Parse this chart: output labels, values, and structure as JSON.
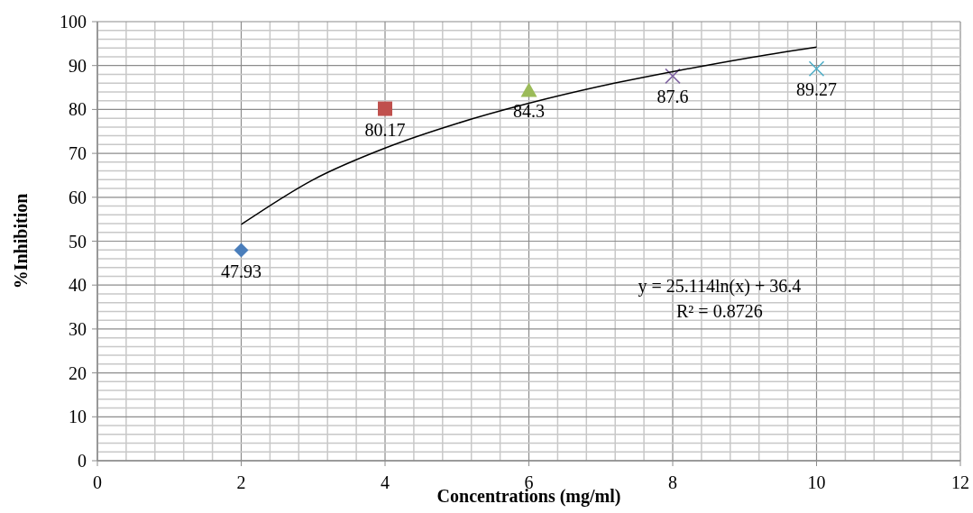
{
  "chart_data": {
    "type": "scatter",
    "xlabel": "Concentrations (mg/ml)",
    "ylabel": "%Inhibition",
    "xlim": [
      0,
      12
    ],
    "ylim": [
      0,
      100
    ],
    "xticks": [
      0,
      {
        "value": 0.4,
        "label": null
      },
      {
        "value": 0.8,
        "label": null
      },
      {
        "value": 1.2,
        "label": null
      },
      {
        "value": 1.6,
        "label": null
      },
      2,
      {
        "value": 2.4,
        "label": null
      },
      {
        "value": 2.8,
        "label": null
      },
      {
        "value": 3.2,
        "label": null
      },
      {
        "value": 3.6,
        "label": null
      },
      4,
      {
        "value": 4.4,
        "label": null
      },
      {
        "value": 4.8,
        "label": null
      },
      {
        "value": 5.2,
        "label": null
      },
      {
        "value": 5.6,
        "label": null
      },
      6,
      {
        "value": 6.4,
        "label": null
      },
      {
        "value": 6.8,
        "label": null
      },
      {
        "value": 7.2,
        "label": null
      },
      {
        "value": 7.6,
        "label": null
      },
      8,
      {
        "value": 8.4,
        "label": null
      },
      {
        "value": 8.8,
        "label": null
      },
      {
        "value": 9.2,
        "label": null
      },
      {
        "value": 9.6,
        "label": null
      },
      10,
      {
        "value": 10.4,
        "label": null
      },
      {
        "value": 10.8,
        "label": null
      },
      {
        "value": 11.2,
        "label": null
      },
      {
        "value": 11.6,
        "label": null
      },
      12
    ],
    "yticks": [
      0,
      {
        "value": 2,
        "label": null
      },
      {
        "value": 4,
        "label": null
      },
      {
        "value": 6,
        "label": null
      },
      {
        "value": 8,
        "label": null
      },
      10,
      {
        "value": 12,
        "label": null
      },
      {
        "value": 14,
        "label": null
      },
      {
        "value": 16,
        "label": null
      },
      {
        "value": 18,
        "label": null
      },
      20,
      {
        "value": 22,
        "label": null
      },
      {
        "value": 24,
        "label": null
      },
      {
        "value": 26,
        "label": null
      },
      {
        "value": 28,
        "label": null
      },
      30,
      {
        "value": 32,
        "label": null
      },
      {
        "value": 34,
        "label": null
      },
      {
        "value": 36,
        "label": null
      },
      {
        "value": 38,
        "label": null
      },
      40,
      {
        "value": 42,
        "label": null
      },
      {
        "value": 44,
        "label": null
      },
      {
        "value": 46,
        "label": null
      },
      {
        "value": 48,
        "label": null
      },
      50,
      {
        "value": 52,
        "label": null
      },
      {
        "value": 54,
        "label": null
      },
      {
        "value": 56,
        "label": null
      },
      {
        "value": 58,
        "label": null
      },
      60,
      {
        "value": 62,
        "label": null
      },
      {
        "value": 64,
        "label": null
      },
      {
        "value": 66,
        "label": null
      },
      {
        "value": 68,
        "label": null
      },
      70,
      {
        "value": 72,
        "label": null
      },
      {
        "value": 74,
        "label": null
      },
      {
        "value": 76,
        "label": null
      },
      {
        "value": 78,
        "label": null
      },
      80,
      {
        "value": 82,
        "label": null
      },
      {
        "value": 84,
        "label": null
      },
      {
        "value": 86,
        "label": null
      },
      {
        "value": 88,
        "label": null
      },
      90,
      {
        "value": 92,
        "label": null
      },
      {
        "value": 94,
        "label": null
      },
      {
        "value": 96,
        "label": null
      },
      {
        "value": 98,
        "label": null
      },
      100
    ],
    "grid": true,
    "series": [
      {
        "color": "#4a7ebb",
        "marker": "diamond",
        "x": [
          2
        ],
        "values": [
          47.93
        ],
        "value_labels": [
          "47.93"
        ]
      },
      {
        "color": "#c0504d",
        "marker": "square",
        "x": [
          4
        ],
        "values": [
          80.17
        ],
        "value_labels": [
          "80.17"
        ]
      },
      {
        "color": "#9bbb59",
        "marker": "triangle",
        "x": [
          6
        ],
        "values": [
          84.3
        ],
        "value_labels": [
          "84.3"
        ]
      },
      {
        "color": "#8064a2",
        "marker": "cross",
        "x": [
          8
        ],
        "values": [
          87.6
        ],
        "value_labels": [
          "87.6"
        ]
      },
      {
        "color": "#4bacc6",
        "marker": "cross",
        "x": [
          10
        ],
        "values": [
          89.27
        ],
        "value_labels": [
          "89.27"
        ]
      },
      {
        "type": "line",
        "color": "#000000",
        "x": [
          2,
          3,
          4,
          5,
          6,
          7,
          8,
          9,
          10
        ],
        "values": [
          53.8,
          64.0,
          71.2,
          76.8,
          81.4,
          85.3,
          88.6,
          91.6,
          94.2
        ]
      }
    ],
    "annotations": [
      "y = 25.114ln(x) + 36.4",
      "R² = 0.8726"
    ]
  }
}
